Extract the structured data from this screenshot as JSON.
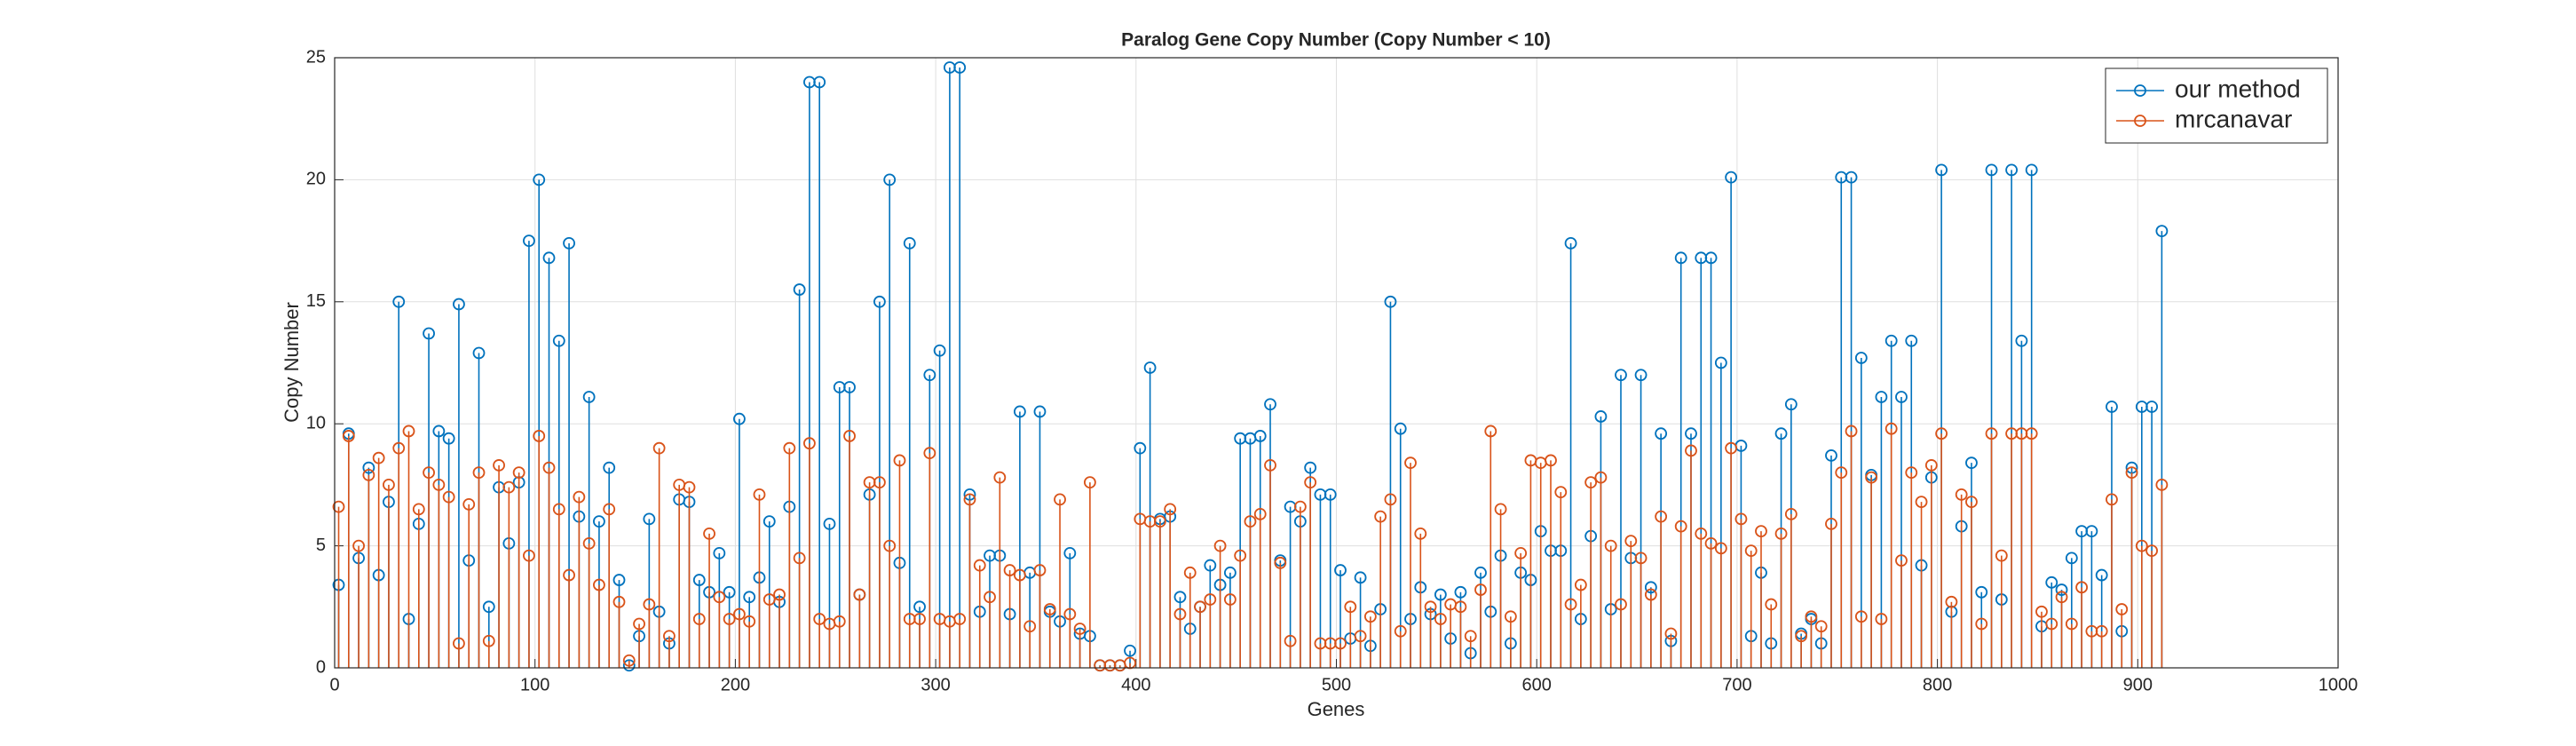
{
  "chart_data": {
    "type": "stem",
    "title": "Paralog Gene Copy Number (Copy Number < 10)",
    "xlabel": "Genes",
    "ylabel": "Copy Number",
    "xlim": [
      0,
      1000
    ],
    "ylim": [
      0,
      25
    ],
    "xticks": [
      0,
      100,
      200,
      300,
      400,
      500,
      600,
      700,
      800,
      900,
      1000
    ],
    "yticks": [
      0,
      5,
      10,
      15,
      20,
      25
    ],
    "grid": true,
    "legend_position": "northeast",
    "x": [
      2,
      7,
      12,
      17,
      22,
      27,
      32,
      37,
      42,
      47,
      52,
      57,
      62,
      67,
      72,
      77,
      82,
      87,
      92,
      97,
      102,
      107,
      112,
      117,
      122,
      127,
      132,
      137,
      142,
      147,
      152,
      157,
      162,
      167,
      172,
      177,
      182,
      187,
      192,
      197,
      202,
      207,
      212,
      217,
      222,
      227,
      232,
      237,
      242,
      247,
      252,
      257,
      262,
      267,
      272,
      277,
      282,
      287,
      292,
      297,
      302,
      307,
      312,
      317,
      322,
      327,
      332,
      337,
      342,
      347,
      352,
      357,
      362,
      367,
      372,
      377,
      382,
      387,
      392,
      397,
      402,
      407,
      412,
      417,
      422,
      427,
      432,
      437,
      442,
      447,
      452,
      457,
      462,
      467,
      472,
      477,
      482,
      487,
      492,
      497,
      502,
      507,
      512,
      517,
      522,
      527,
      532,
      537,
      542,
      547,
      552,
      557,
      562,
      567,
      572,
      577,
      582,
      587,
      592,
      597,
      602,
      607,
      612,
      617,
      622,
      627,
      632,
      637,
      642,
      647,
      652,
      657,
      662,
      667,
      672,
      677,
      682,
      687,
      692,
      697,
      702,
      707,
      712,
      717,
      722,
      727,
      732,
      737,
      742,
      747,
      752,
      757,
      762,
      767,
      772,
      777,
      782,
      787,
      792,
      797,
      802,
      807,
      812,
      817,
      822,
      827,
      832,
      837,
      842,
      847,
      852,
      857,
      862,
      867,
      872,
      877,
      882,
      887,
      892,
      897,
      902,
      907,
      912
    ],
    "series": [
      {
        "name": "our method",
        "color": "#0072BD",
        "values": [
          3.4,
          9.6,
          4.5,
          8.2,
          3.8,
          6.8,
          15.0,
          2.0,
          5.9,
          13.7,
          9.7,
          9.4,
          14.9,
          4.4,
          12.9,
          2.5,
          7.4,
          5.1,
          7.6,
          17.5,
          20.0,
          16.8,
          13.4,
          17.4,
          6.2,
          11.1,
          6.0,
          8.2,
          3.6,
          0.1,
          1.3,
          6.1,
          2.3,
          1.0,
          6.9,
          6.8,
          3.6,
          3.1,
          4.7,
          3.1,
          10.2,
          2.9,
          3.7,
          6.0,
          2.7,
          6.6,
          15.5,
          24.0,
          24.0,
          5.9,
          11.5,
          11.5,
          3.0,
          7.1,
          15.0,
          20.0,
          4.3,
          17.4,
          2.5,
          12.0,
          13.0,
          24.6,
          24.6,
          7.1,
          2.3,
          4.6,
          4.6,
          2.2,
          10.5,
          3.9,
          10.5,
          2.3,
          1.9,
          4.7,
          1.4,
          1.3,
          0.1,
          0.1,
          0.1,
          0.7,
          9.0,
          12.3,
          6.1,
          6.2,
          2.9,
          1.6,
          2.5,
          4.2,
          3.4,
          3.9,
          9.4,
          9.4,
          9.5,
          10.8,
          4.4,
          6.6,
          6.0,
          8.2,
          7.1,
          7.1,
          4.0,
          1.2,
          3.7,
          0.9,
          2.4,
          15.0,
          9.8,
          2.0,
          3.3,
          2.2,
          3.0,
          1.2,
          3.1,
          0.6,
          3.9,
          2.3,
          4.6,
          1.0,
          3.9,
          3.6,
          5.6,
          4.8,
          4.8,
          17.4,
          2.0,
          5.4,
          10.3,
          2.4,
          12.0,
          4.5,
          12.0,
          3.3,
          9.6,
          1.1,
          16.8,
          9.6,
          16.8,
          16.8,
          12.5,
          20.1,
          9.1,
          1.3,
          3.9,
          1.0,
          9.6,
          10.8,
          1.4,
          2.0,
          1.0,
          8.7,
          20.1,
          20.1,
          12.7,
          7.9,
          11.1,
          13.4,
          11.1,
          13.4,
          4.2,
          7.8,
          20.4,
          2.3,
          5.8,
          8.4,
          3.1,
          20.4,
          2.8,
          20.4,
          13.4,
          20.4,
          1.7,
          3.5,
          3.2,
          4.5,
          5.6,
          5.6,
          3.8,
          10.7,
          1.5,
          8.2,
          10.7,
          10.7,
          17.9
        ]
      },
      {
        "name": "mrcanavar",
        "color": "#D95319",
        "values": [
          6.6,
          9.5,
          5.0,
          7.9,
          8.6,
          7.5,
          9.0,
          9.7,
          6.5,
          8.0,
          7.5,
          7.0,
          1.0,
          6.7,
          8.0,
          1.1,
          8.3,
          7.4,
          8.0,
          4.6,
          9.5,
          8.2,
          6.5,
          3.8,
          7.0,
          5.1,
          3.4,
          6.5,
          2.7,
          0.3,
          1.8,
          2.6,
          9.0,
          1.3,
          7.5,
          7.4,
          2.0,
          5.5,
          2.9,
          2.0,
          2.2,
          1.9,
          7.1,
          2.8,
          3.0,
          9.0,
          4.5,
          9.2,
          2.0,
          1.8,
          1.9,
          9.5,
          3.0,
          7.6,
          7.6,
          5.0,
          8.5,
          2.0,
          2.0,
          8.8,
          2.0,
          1.9,
          2.0,
          6.9,
          4.2,
          2.9,
          7.8,
          4.0,
          3.8,
          1.7,
          4.0,
          2.4,
          6.9,
          2.2,
          1.6,
          7.6,
          0.1,
          0.1,
          0.1,
          0.2,
          6.1,
          6.0,
          6.0,
          6.5,
          2.2,
          3.9,
          2.5,
          2.8,
          5.0,
          2.8,
          4.6,
          6.0,
          6.3,
          8.3,
          4.3,
          1.1,
          6.6,
          7.6,
          1.0,
          1.0,
          1.0,
          2.5,
          1.3,
          2.1,
          6.2,
          6.9,
          1.5,
          8.4,
          5.5,
          2.5,
          2.0,
          2.6,
          2.5,
          1.3,
          3.2,
          9.7,
          6.5,
          2.1,
          4.7,
          8.5,
          8.4,
          8.5,
          7.2,
          2.6,
          3.4,
          7.6,
          7.8,
          5.0,
          2.6,
          5.2,
          4.5,
          3.0,
          6.2,
          1.4,
          5.8,
          8.9,
          5.5,
          5.1,
          4.9,
          9.0,
          6.1,
          4.8,
          5.6,
          2.6,
          5.5,
          6.3,
          1.3,
          2.1,
          1.7,
          5.9,
          8.0,
          9.7,
          2.1,
          7.8,
          2.0,
          9.8,
          4.4,
          8.0,
          6.8,
          8.3,
          9.6,
          2.7,
          7.1,
          6.8,
          1.8,
          9.6,
          4.6,
          9.6,
          9.6,
          9.6,
          2.3,
          1.8,
          2.9,
          1.8,
          3.3,
          1.5,
          1.5,
          6.9,
          2.4,
          8.0,
          5.0,
          4.8,
          7.5
        ]
      }
    ]
  }
}
